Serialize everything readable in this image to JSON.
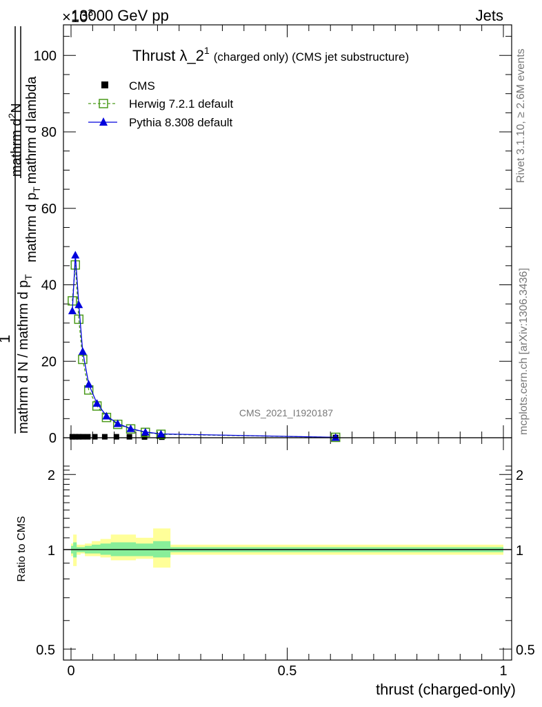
{
  "header": {
    "energy": "13000 GeV pp",
    "process": "Jets",
    "exponent": "×10",
    "exponent_power": "3",
    "rivet": "Rivet 3.1.10, ≥ 2.6M events",
    "mcplots": "mcplots.cern.ch [arXiv:1306.3436]",
    "watermark": "CMS_2021_I1920187"
  },
  "chart_data": [
    {
      "type": "line",
      "title": "Thrust λ_2",
      "title_superscript": "1",
      "subtitle": "(charged only) (CMS jet substructure)",
      "ylabel_fraction": {
        "numerator_left": "1",
        "denominator_left": "mathrm d N / mathrm d p",
        "denominator_left_sub": "T",
        "numerator_right": "mathrm d",
        "numerator_right_sup": "2",
        "numerator_right_tail": "N",
        "denominator_right": "mathrm d p",
        "denominator_right_sub": "T",
        "denominator_right_tail": "mathrm d lambda"
      },
      "xlim": [
        0,
        1
      ],
      "ylim": [
        0,
        108
      ],
      "y_scale_note": "×10^3",
      "y_ticks": [
        0,
        20,
        40,
        60,
        80,
        100
      ],
      "legend_position": "top-left",
      "series": [
        {
          "name": "CMS",
          "color": "#000000",
          "marker": "square-filled",
          "x": [
            0.003,
            0.01,
            0.018,
            0.027,
            0.039,
            0.055,
            0.078,
            0.105,
            0.135,
            0.17,
            0.21,
            0.612
          ],
          "y": [
            0.25,
            0.25,
            0.25,
            0.25,
            0.25,
            0.25,
            0.25,
            0.25,
            0.25,
            0.2,
            0.15,
            0.05
          ]
        },
        {
          "name": "Herwig 7.2.1 default",
          "color": "#4a9a1a",
          "marker": "square-open",
          "line": "dashed",
          "x": [
            0.003,
            0.01,
            0.018,
            0.027,
            0.041,
            0.06,
            0.082,
            0.108,
            0.138,
            0.172,
            0.208,
            0.612
          ],
          "y": [
            35.8,
            45.2,
            31.0,
            20.5,
            12.5,
            8.3,
            5.3,
            3.5,
            2.3,
            1.4,
            0.9,
            0.1
          ]
        },
        {
          "name": "Pythia 8.308 default",
          "color": "#0000dd",
          "marker": "triangle-filled",
          "line": "solid",
          "x": [
            0.003,
            0.01,
            0.018,
            0.027,
            0.041,
            0.06,
            0.082,
            0.108,
            0.138,
            0.172,
            0.208,
            0.612
          ],
          "y": [
            33.2,
            47.8,
            34.8,
            22.6,
            14.0,
            9.0,
            5.7,
            3.7,
            2.4,
            1.5,
            1.0,
            0.1
          ]
        }
      ]
    },
    {
      "type": "area",
      "ylabel": "Ratio to CMS",
      "xlabel": "thrust (charged-only)",
      "xlim": [
        0,
        1
      ],
      "ylim": [
        0.4,
        2.3
      ],
      "y_ticks": [
        0.5,
        1,
        2
      ],
      "x_ticks": [
        0,
        0.5,
        1
      ],
      "x_tick_labels": [
        "0",
        "0.5",
        "1"
      ],
      "reference_line": 1,
      "bands": [
        {
          "name": "total uncertainty",
          "color": "#ffff99",
          "x": [
            0,
            0.005,
            0.005,
            0.013,
            0.013,
            0.022,
            0.022,
            0.032,
            0.032,
            0.048,
            0.048,
            0.068,
            0.068,
            0.092,
            0.092,
            0.118,
            0.118,
            0.15,
            0.15,
            0.19,
            0.19,
            0.23,
            0.23,
            1.0
          ],
          "lo": [
            0.95,
            0.95,
            0.88,
            0.88,
            0.96,
            0.96,
            0.97,
            0.97,
            0.95,
            0.95,
            0.95,
            0.95,
            0.94,
            0.94,
            0.92,
            0.92,
            0.92,
            0.92,
            0.93,
            0.93,
            0.87,
            0.87,
            0.96,
            0.96
          ],
          "hi": [
            1.05,
            1.05,
            1.13,
            1.13,
            1.04,
            1.04,
            1.04,
            1.04,
            1.05,
            1.05,
            1.07,
            1.07,
            1.09,
            1.09,
            1.13,
            1.13,
            1.13,
            1.13,
            1.1,
            1.1,
            1.19,
            1.19,
            1.04,
            1.04
          ]
        },
        {
          "name": "statistical uncertainty",
          "color": "#88ee99",
          "x": [
            0,
            0.005,
            0.005,
            0.013,
            0.013,
            0.022,
            0.022,
            0.032,
            0.032,
            0.048,
            0.048,
            0.068,
            0.068,
            0.092,
            0.092,
            0.118,
            0.118,
            0.15,
            0.15,
            0.19,
            0.19,
            0.23,
            0.23,
            1.0
          ],
          "lo": [
            0.97,
            0.97,
            0.94,
            0.94,
            0.98,
            0.98,
            0.98,
            0.98,
            0.97,
            0.97,
            0.97,
            0.97,
            0.96,
            0.96,
            0.95,
            0.95,
            0.95,
            0.95,
            0.95,
            0.95,
            0.94,
            0.94,
            0.98,
            0.98
          ],
          "hi": [
            1.03,
            1.03,
            1.06,
            1.06,
            1.02,
            1.02,
            1.02,
            1.02,
            1.03,
            1.03,
            1.04,
            1.04,
            1.05,
            1.05,
            1.06,
            1.06,
            1.06,
            1.06,
            1.05,
            1.05,
            1.07,
            1.07,
            1.02,
            1.02
          ]
        }
      ]
    }
  ]
}
